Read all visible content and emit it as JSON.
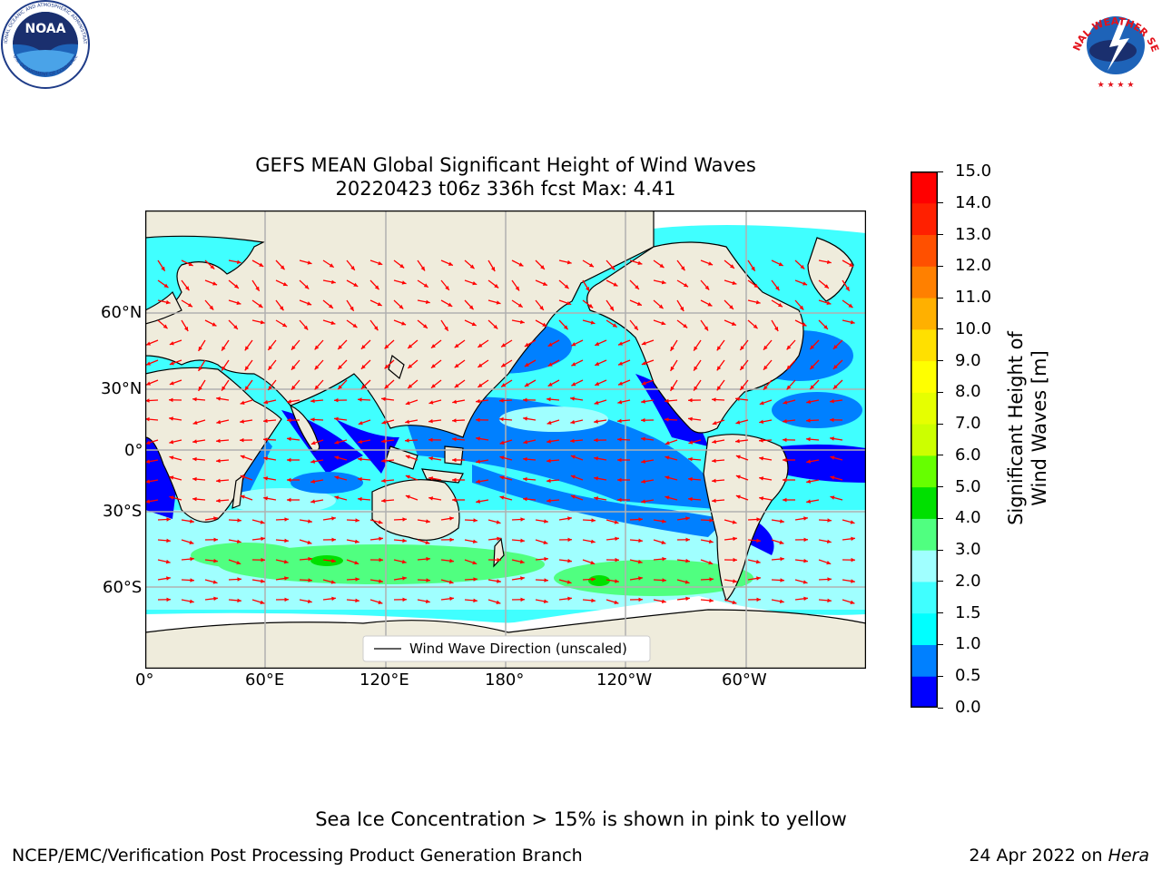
{
  "figure": {
    "title_line1": "GEFS MEAN Global Significant Height of Wind Waves",
    "title_line2": "20220423 t06z 336h fcst   Max: 4.41"
  },
  "map": {
    "lon_ticks": [
      "0°",
      "60°E",
      "120°E",
      "180°",
      "120°W",
      "60°W"
    ],
    "lat_ticks": [
      "60°N",
      "30°N",
      "0°",
      "30°S",
      "60°S"
    ],
    "legend_label": "Wind Wave Direction (unscaled)",
    "arrow_color": "#ff0000",
    "land_color": "#efecdc",
    "ice_color": "#ffffff"
  },
  "colorbar": {
    "label": "Significant Height of Wind Waves [m]",
    "tick_labels": [
      "0.0",
      "0.5",
      "1.0",
      "1.5",
      "2.0",
      "3.0",
      "4.0",
      "5.0",
      "6.0",
      "7.0",
      "8.0",
      "9.0",
      "10.0",
      "11.0",
      "12.0",
      "13.0",
      "14.0",
      "15.0"
    ],
    "colors": [
      "#0000ff",
      "#0080ff",
      "#00ffff",
      "#40ffff",
      "#a0ffff",
      "#50ff80",
      "#00e000",
      "#66ff00",
      "#ccff00",
      "#e6ff00",
      "#ffff00",
      "#ffe000",
      "#ffb000",
      "#ff8000",
      "#ff5000",
      "#ff2000",
      "#ff0000"
    ]
  },
  "logos": {
    "noaa_text": "NOAA",
    "noaa_ring": "NATIONAL OCEANIC AND ATMOSPHERIC ADMINISTRATION",
    "noaa_ring_bottom": "U.S. DEPARTMENT OF COMMERCE",
    "nws_ring": "NATIONAL WEATHER SERVICE"
  },
  "footer": {
    "note": "Sea Ice Concentration > 15% is shown in pink to yellow",
    "left": "NCEP/EMC/Verification Post Processing Product Generation Branch",
    "date": "24 Apr 2022 on ",
    "machine": "Hera"
  }
}
